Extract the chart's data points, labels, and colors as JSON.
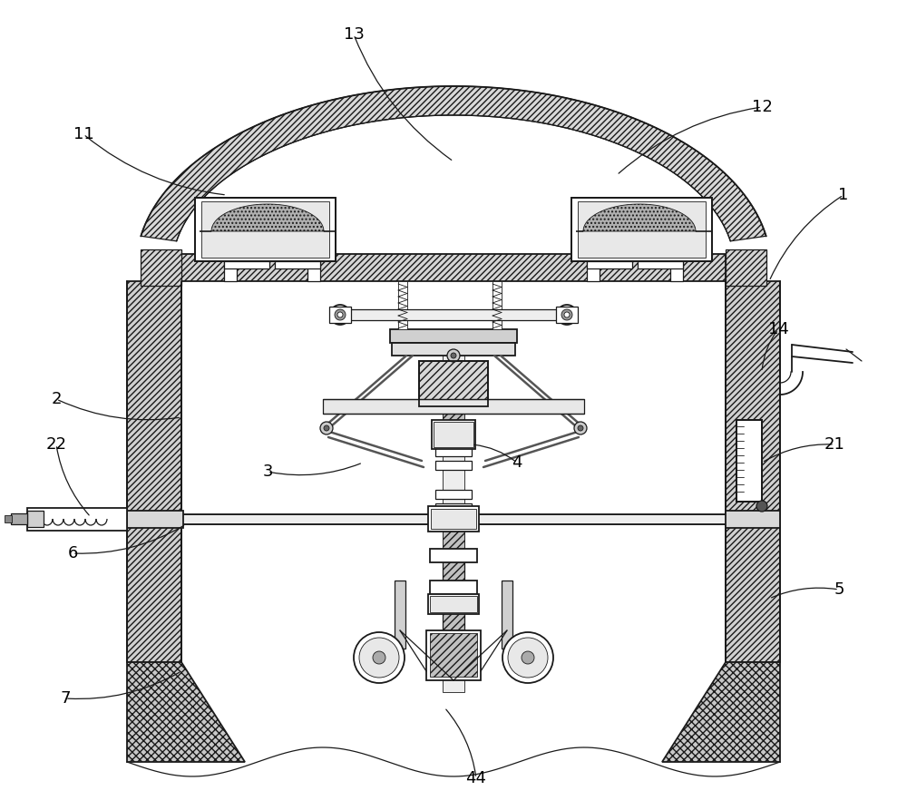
{
  "background_color": "#ffffff",
  "line_color": "#1a1a1a",
  "figsize": [
    10.0,
    8.93
  ],
  "dpi": 100,
  "labels_info": [
    [
      "1",
      930,
      215,
      848,
      310
    ],
    [
      "2",
      62,
      440,
      200,
      460
    ],
    [
      "3",
      295,
      520,
      400,
      510
    ],
    [
      "4",
      570,
      510,
      520,
      490
    ],
    [
      "5",
      925,
      650,
      848,
      660
    ],
    [
      "6",
      80,
      610,
      205,
      578
    ],
    [
      "7",
      72,
      770,
      200,
      740
    ],
    [
      "11",
      92,
      148,
      250,
      215
    ],
    [
      "12",
      840,
      118,
      680,
      193
    ],
    [
      "13",
      390,
      38,
      500,
      178
    ],
    [
      "14",
      858,
      363,
      840,
      410
    ],
    [
      "21",
      920,
      490,
      840,
      510
    ],
    [
      "22",
      62,
      490,
      100,
      570
    ],
    [
      "44",
      525,
      858,
      490,
      780
    ]
  ]
}
